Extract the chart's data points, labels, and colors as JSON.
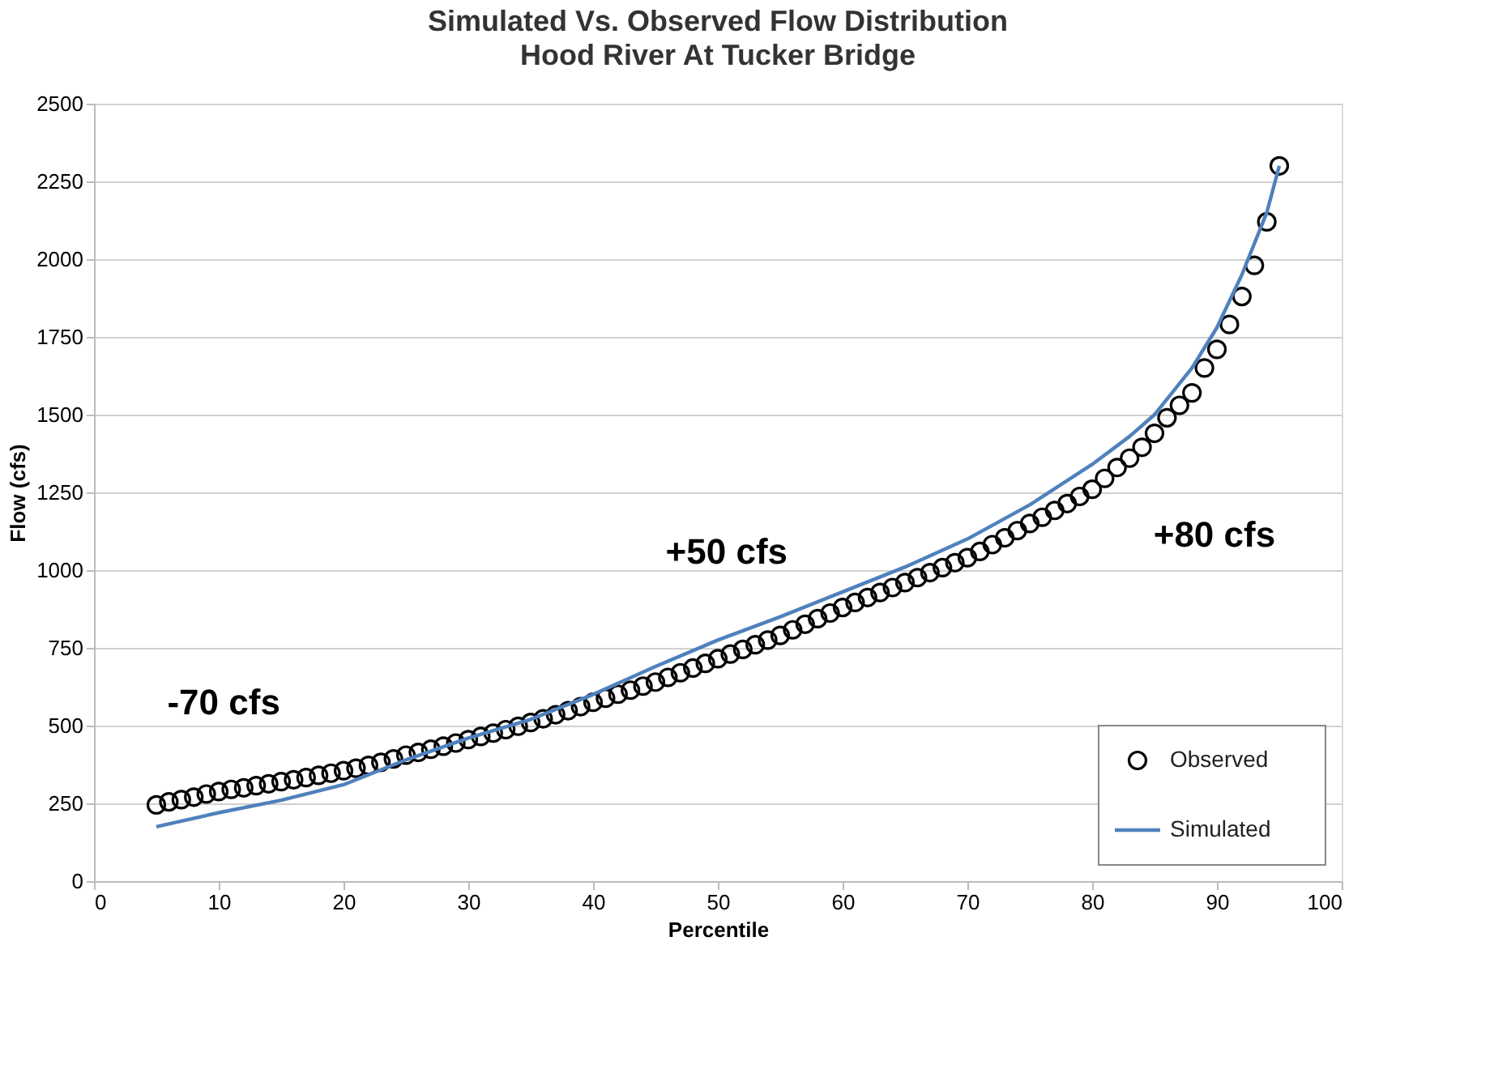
{
  "chart_data": {
    "type": "scatter",
    "title": "Simulated Vs. Observed Flow Distribution",
    "subtitle": "Hood River At Tucker Bridge",
    "xlabel": "Percentile",
    "ylabel": "Flow (cfs)",
    "xlim": [
      0,
      100
    ],
    "xticks": [
      0,
      10,
      20,
      30,
      40,
      50,
      60,
      70,
      80,
      90,
      100
    ],
    "ylim": [
      0,
      2500
    ],
    "yticks": [
      0,
      250,
      500,
      750,
      1000,
      1250,
      1500,
      1750,
      2000,
      2250,
      2500
    ],
    "grid": "y",
    "legend": "bottom right",
    "series": [
      {
        "name": "Observed",
        "type": "scatter",
        "marker": "circle",
        "color": "#000000",
        "x": [
          5,
          6,
          7,
          8,
          9,
          10,
          11,
          12,
          13,
          14,
          15,
          16,
          17,
          18,
          19,
          20,
          21,
          22,
          23,
          24,
          25,
          26,
          27,
          28,
          29,
          30,
          31,
          32,
          33,
          34,
          35,
          36,
          37,
          38,
          39,
          40,
          41,
          42,
          43,
          44,
          45,
          46,
          47,
          48,
          49,
          50,
          51,
          52,
          53,
          54,
          55,
          56,
          57,
          58,
          59,
          60,
          61,
          62,
          63,
          64,
          65,
          66,
          67,
          68,
          69,
          70,
          71,
          72,
          73,
          74,
          75,
          76,
          77,
          78,
          79,
          80,
          81,
          82,
          83,
          84,
          85,
          86,
          87,
          88,
          89,
          90,
          91,
          92,
          93,
          94,
          95
        ],
        "values": [
          245,
          255,
          262,
          270,
          280,
          288,
          295,
          300,
          307,
          313,
          320,
          326,
          333,
          340,
          347,
          355,
          363,
          372,
          382,
          393,
          405,
          414,
          424,
          434,
          444,
          455,
          465,
          476,
          487,
          498,
          510,
          522,
          535,
          548,
          561,
          575,
          588,
          601,
          614,
          627,
          640,
          655,
          670,
          685,
          700,
          715,
          730,
          745,
          760,
          775,
          790,
          808,
          826,
          844,
          862,
          880,
          896,
          912,
          928,
          944,
          960,
          976,
          992,
          1008,
          1024,
          1040,
          1060,
          1082,
          1104,
          1127,
          1150,
          1170,
          1192,
          1214,
          1237,
          1260,
          1295,
          1330,
          1360,
          1395,
          1440,
          1490,
          1530,
          1570,
          1650,
          1710,
          1790,
          1880,
          1980,
          2120,
          2300
        ]
      },
      {
        "name": "Simulated",
        "type": "line",
        "marker": "none",
        "line_style": "solid",
        "color": "#4f81bd",
        "x": [
          5,
          10,
          15,
          20,
          25,
          30,
          35,
          40,
          45,
          50,
          55,
          60,
          65,
          70,
          75,
          80,
          83,
          85,
          88,
          90,
          92,
          94,
          95
        ],
        "values": [
          175,
          220,
          260,
          310,
          390,
          460,
          520,
          600,
          690,
          775,
          850,
          930,
          1010,
          1100,
          1210,
          1340,
          1430,
          1500,
          1650,
          1780,
          1950,
          2150,
          2300
        ]
      }
    ],
    "annotations": [
      "-70 cfs",
      "+50 cfs",
      "+80 cfs"
    ]
  }
}
